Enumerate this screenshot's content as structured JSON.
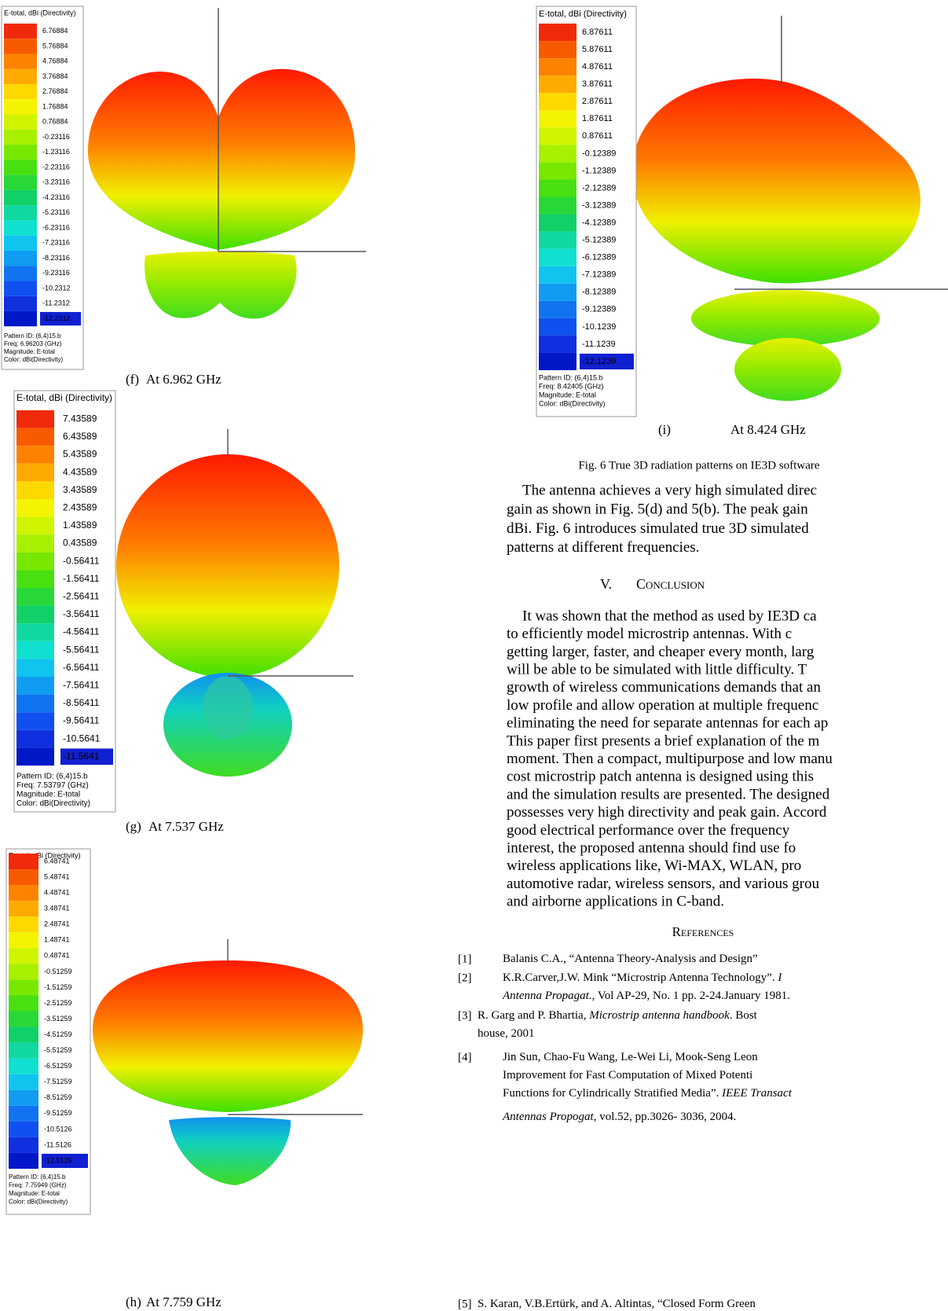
{
  "figure": {
    "panels": [
      {
        "legend_title": "E-total, dBi (Directivity)",
        "levels": [
          "6.76884",
          "5.76884",
          "4.76884",
          "3.76884",
          "2.76884",
          "1.76884",
          "0.76884",
          "-0.23116",
          "-1.23116",
          "-2.23116",
          "-3.23116",
          "-4.23116",
          "-5.23116",
          "-6.23116",
          "-7.23116",
          "-8.23116",
          "-9.23116",
          "-10.2312",
          "-11.2312",
          "-12.2312"
        ],
        "info": [
          "Pattern ID: (6,4)15.b",
          "Freq: 6.96203 (GHz)",
          "Magnitude: E-total",
          "Color: dBi(Directivity)"
        ],
        "caption": [
          "(f)",
          "At 6.962 GHz"
        ]
      },
      {
        "legend_title": "E-total, dBi (Directivity)",
        "levels": [
          "7.43589",
          "6.43589",
          "5.43589",
          "4.43589",
          "3.43589",
          "2.43589",
          "1.43589",
          "0.43589",
          "-0.56411",
          "-1.56411",
          "-2.56411",
          "-3.56411",
          "-4.56411",
          "-5.56411",
          "-6.56411",
          "-7.56411",
          "-8.56411",
          "-9.56411",
          "-10.5641",
          "-11.5641"
        ],
        "info": [
          "Pattern ID: (6,4)15.b",
          "Freq: 7.53797 (GHz)",
          "Magnitude: E-total",
          "Color: dBi(Directivity)"
        ],
        "caption": [
          "(g)",
          "At 7.537 GHz"
        ]
      },
      {
        "legend_title": "E-total, dBi (Directivity)",
        "levels": [
          "6.48741",
          "5.48741",
          "4.48741",
          "3.48741",
          "2.48741",
          "1.48741",
          "0.48741",
          "-0.51259",
          "-1.51259",
          "-2.51259",
          "-3.51259",
          "-4.51259",
          "-5.51259",
          "-6.51259",
          "-7.51259",
          "-8.51259",
          "-9.51259",
          "-10.5126",
          "-11.5126",
          "-12.5126"
        ],
        "info": [
          "Pattern ID: (6,4)15.b",
          "Freq: 7.75949 (GHz)",
          "Magnitude: E-total",
          "Color: dBi(Directivity)"
        ],
        "caption": [
          "(h)",
          "At 7.759 GHz"
        ]
      },
      {
        "legend_title": "E-total, dBi (Directivity)",
        "levels": [
          "6.87611",
          "5.87611",
          "4.87611",
          "3.87611",
          "2.87611",
          "1.87611",
          "0.87611",
          "-0.12389",
          "-1.12389",
          "-2.12389",
          "-3.12389",
          "-4.12389",
          "-5.12389",
          "-6.12389",
          "-7.12389",
          "-8.12389",
          "-9.12389",
          "-10.1239",
          "-11.1239",
          "-12.1239"
        ],
        "info": [
          "Pattern ID: (6,4)15.b",
          "Freq: 8.42405 (GHz)",
          "Magnitude: E-total",
          "Color: dBi(Directivity)"
        ],
        "caption": [
          "(i)",
          "At 8.424 GHz"
        ]
      }
    ],
    "caption": "Fig. 6 True 3D radiation patterns on IE3D software"
  },
  "paragraph": [
    "The antenna achieves a very high simulated direc",
    "gain as shown in Fig. 5(d) and 5(b). The peak gain",
    "dBi. Fig. 6 introduces simulated true 3D simulated",
    "patterns at different frequencies."
  ],
  "section": {
    "number": "V.",
    "title": "Conclusion",
    "lines": [
      "It was shown that the method as used by IE3D ca",
      "to efficiently model microstrip antennas. With c",
      "getting larger, faster, and cheaper every month, larg",
      "will be able to be simulated with little difficulty. T",
      "growth of wireless communications demands that an",
      "low profile and allow operation at multiple frequenc",
      "eliminating the need for separate antennas for each ap",
      "This paper first presents a brief explanation of the m",
      "moment. Then a compact, multipurpose and low manu",
      "cost microstrip patch antenna is designed using this",
      "and the simulation results are presented. The designed",
      "possesses very high directivity and peak gain. Accord",
      "good electrical performance over the frequency",
      "interest, the proposed antenna should find use fo",
      "wireless applications like, Wi-MAX, WLAN, pro",
      "automotive radar, wireless sensors, and various grou",
      "and airborne applications in C-band."
    ]
  },
  "references": {
    "title": "References",
    "items": [
      {
        "label": "[1]",
        "lines": [
          [
            {
              "text": "Balanis C.A., “Antenna Theory-Analysis and Design”"
            }
          ]
        ]
      },
      {
        "label": "[2]",
        "lines": [
          [
            {
              "text": "K.R.Carver,J.W. Mink “Microstrip Antenna Technology”. "
            },
            {
              "text": "I",
              "italic": true
            }
          ],
          [
            {
              "text": "Antenna Propagat.",
              "italic": true
            },
            {
              "text": ", Vol AP-29, No. 1 pp. 2-24.January 1981."
            }
          ]
        ]
      },
      {
        "label": "[3]",
        "lines": [
          [
            {
              "text": "R. Garg and P. Bhartia, "
            },
            {
              "text": "Microstrip antenna handbook",
              "italic": true
            },
            {
              "text": ".  Bost"
            }
          ],
          [
            {
              "text": "house, 2001"
            }
          ]
        ]
      },
      {
        "label": "[4]",
        "lines": [
          [
            {
              "text": "Jin Sun, Chao-Fu Wang, Le-Wei Li, Mook-Seng Leon"
            }
          ],
          [
            {
              "text": "Improvement for Fast Computation of Mixed Potenti"
            }
          ],
          [
            {
              "text": "Functions for Cylindrically Stratified Media”. "
            },
            {
              "text": "IEEE Transact",
              "italic": true
            }
          ],
          [
            {
              "text": "Antennas Propogat",
              "italic": true
            },
            {
              "text": ", vol.52, pp.3026- 3036, 2004."
            }
          ]
        ]
      },
      {
        "label": "[5]",
        "lines": [
          [
            {
              "text": "S. Karan, V.B.Ertürk, and A. Altintas, “Closed Form Green"
            }
          ]
        ]
      }
    ]
  }
}
